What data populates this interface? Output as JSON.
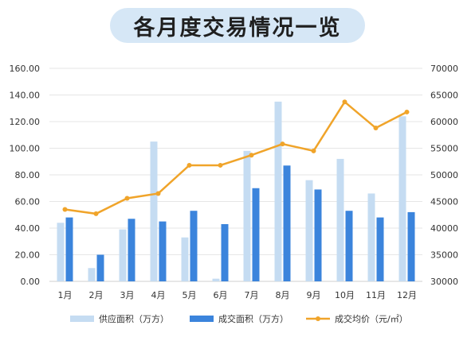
{
  "chart_data": {
    "type": "bar",
    "title": "各月度交易情况一览",
    "categories": [
      "1月",
      "2月",
      "3月",
      "4月",
      "5月",
      "6月",
      "7月",
      "8月",
      "9月",
      "10月",
      "11月",
      "12月"
    ],
    "left_axis": {
      "ylim": [
        0,
        160
      ],
      "ticks": [
        "0.00",
        "20.00",
        "40.00",
        "60.00",
        "80.00",
        "100.00",
        "120.00",
        "140.00",
        "160.00"
      ]
    },
    "right_axis": {
      "ylim": [
        30000,
        70000
      ],
      "ticks": [
        "30000",
        "35000",
        "40000",
        "45000",
        "50000",
        "55000",
        "60000",
        "65000",
        "70000"
      ]
    },
    "series": [
      {
        "name": "供应面积（万方）",
        "kind": "bar",
        "axis": "left",
        "color": "#c5dcf2",
        "values": [
          44,
          10,
          39,
          105,
          33,
          2,
          98,
          135,
          76,
          92,
          66,
          124
        ]
      },
      {
        "name": "成交面积（万方）",
        "kind": "bar",
        "axis": "left",
        "color": "#3b84dc",
        "values": [
          48,
          20,
          47,
          45,
          53,
          43,
          70,
          87,
          69,
          53,
          48,
          52
        ]
      },
      {
        "name": "成交均价（元/㎡）",
        "kind": "line",
        "axis": "right",
        "color": "#f0a42a",
        "values": [
          43500,
          42700,
          45600,
          46500,
          51800,
          51800,
          53700,
          55800,
          54500,
          63700,
          58800,
          61800
        ]
      }
    ],
    "grid": true,
    "legend_position": "bottom"
  }
}
